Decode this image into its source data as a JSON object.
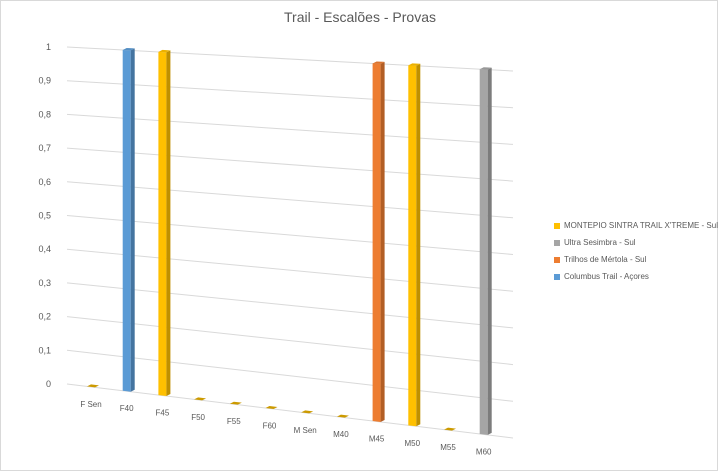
{
  "chart_data": {
    "type": "bar",
    "title": "Trail - Escalões - Provas",
    "categories": [
      "F Sen",
      "F40",
      "F45",
      "F50",
      "F55",
      "F60",
      "M Sen",
      "M40",
      "M45",
      "M50",
      "M55",
      "M60"
    ],
    "y_ticks": [
      "0",
      "0,1",
      "0,2",
      "0,3",
      "0,4",
      "0,5",
      "0,6",
      "0,7",
      "0,8",
      "0,9",
      "1"
    ],
    "ylim": [
      0,
      1
    ],
    "grid": true,
    "legend_position": "right",
    "series": [
      {
        "name": "MONTEPIO SINTRA TRAIL X'TREME - Sul",
        "color": "#FFC000",
        "values": [
          0,
          0,
          1,
          0,
          0,
          0,
          0,
          0,
          0,
          1,
          0,
          0
        ]
      },
      {
        "name": "Ultra Sesimbra - Sul",
        "color": "#A5A5A5",
        "values": [
          0,
          0,
          0,
          0,
          0,
          0,
          0,
          0,
          0,
          0,
          0,
          1
        ]
      },
      {
        "name": "Trilhos de Mértola - Sul",
        "color": "#ED7D31",
        "values": [
          0,
          0,
          0,
          0,
          0,
          0,
          0,
          0,
          1,
          0,
          0,
          0
        ]
      },
      {
        "name": "Columbus Trail - Açores",
        "color": "#5B9BD5",
        "values": [
          0,
          1,
          0,
          0,
          0,
          0,
          0,
          0,
          0,
          0,
          0,
          0
        ]
      }
    ]
  }
}
